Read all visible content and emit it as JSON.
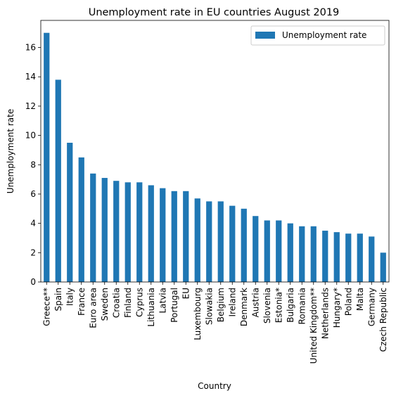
{
  "chart_data": {
    "type": "bar",
    "title": "Unemployment rate in EU countries August 2019",
    "xlabel": "Country",
    "ylabel": "Unemployment rate",
    "ylim": [
      0,
      17.85
    ],
    "yticks": [
      0,
      2,
      4,
      6,
      8,
      10,
      12,
      14,
      16
    ],
    "grid": false,
    "legend_position": "top-right",
    "bar_color": "#1f77b4",
    "categories": [
      "Greece**",
      "Spain",
      "Italy",
      "France",
      "Euro area",
      "Sweden",
      "Croatia",
      "Finland",
      "Cyprus",
      "Lithuania",
      "Latvia",
      "Portugal",
      "EU",
      "Luxembourg",
      "Slowakia",
      "Belgium",
      "Ireland",
      "Denmark",
      "Austria",
      "Slovenia",
      "Estonia*",
      "Bulgaria",
      "Romania",
      "United Kingdom**",
      "Netherlands",
      "Hungary*",
      "Poland",
      "Malta",
      "Germany",
      "Czech Republic"
    ],
    "series": [
      {
        "name": "Unemployment rate",
        "values": [
          17.0,
          13.8,
          9.5,
          8.5,
          7.4,
          7.1,
          6.9,
          6.8,
          6.8,
          6.6,
          6.4,
          6.2,
          6.2,
          5.7,
          5.5,
          5.5,
          5.2,
          5.0,
          4.5,
          4.2,
          4.2,
          4.0,
          3.8,
          3.8,
          3.5,
          3.4,
          3.3,
          3.3,
          3.1,
          2.0
        ]
      }
    ]
  }
}
